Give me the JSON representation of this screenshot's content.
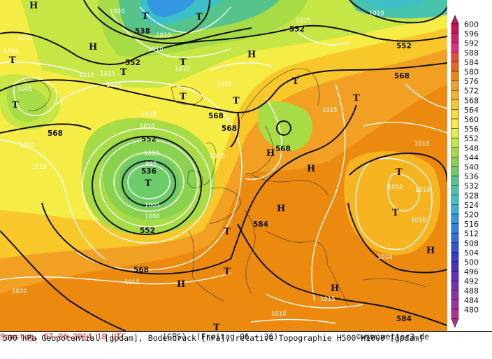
{
  "map": {
    "symbols": [
      {
        "t": "H",
        "id": "h1"
      },
      {
        "t": "T",
        "id": "t1"
      },
      {
        "t": "T",
        "id": "t2"
      },
      {
        "t": "H",
        "id": "h2"
      },
      {
        "t": "T",
        "id": "t3"
      },
      {
        "t": "T",
        "id": "t4"
      },
      {
        "t": "H",
        "id": "h3"
      },
      {
        "t": "T",
        "id": "t5"
      },
      {
        "t": "T",
        "id": "t6"
      },
      {
        "t": "T",
        "id": "t7"
      },
      {
        "t": "T",
        "id": "t8"
      },
      {
        "t": "T",
        "id": "t9"
      },
      {
        "t": "H",
        "id": "h4"
      },
      {
        "t": "H",
        "id": "h5"
      },
      {
        "t": "H",
        "id": "h6"
      },
      {
        "t": "T",
        "id": "t10"
      },
      {
        "t": "T",
        "id": "t11"
      },
      {
        "t": "T",
        "id": "t12"
      },
      {
        "t": "H",
        "id": "h7"
      },
      {
        "t": "T",
        "id": "t13"
      },
      {
        "t": "H",
        "id": "h8"
      },
      {
        "t": "H",
        "id": "h9"
      },
      {
        "t": "T",
        "id": "t14"
      },
      {
        "t": "T",
        "id": "t15"
      },
      {
        "t": "T",
        "id": "t16"
      }
    ],
    "geopotential_labels": [
      "538",
      "552",
      "552",
      "552",
      "568",
      "568",
      "568",
      "568",
      "568",
      "552",
      "536",
      "552",
      "568",
      "584",
      "584"
    ],
    "pressure_labels": [
      "1020",
      "1010",
      "1015",
      "1010",
      "1010",
      "1010",
      "1010",
      "1005",
      "1010",
      "1015",
      "1015",
      "1020",
      "1010",
      "1015",
      "1010",
      "1015",
      "1010",
      "1000",
      "995",
      "1000",
      "1005",
      "1015",
      "1020",
      "1010",
      "1015",
      "1010",
      "1010",
      "1010",
      "1010",
      "1010",
      "1015",
      "1010"
    ]
  },
  "legend": {
    "scale_values": [
      600,
      596,
      592,
      588,
      584,
      580,
      576,
      572,
      568,
      564,
      560,
      556,
      552,
      548,
      544,
      540,
      536,
      532,
      528,
      524,
      520,
      516,
      512,
      508,
      504,
      500,
      496,
      492,
      488,
      484,
      480
    ],
    "colors": [
      "#c8125a",
      "#d4206a",
      "#e0307c",
      "#e04a3a",
      "#e46a1e",
      "#ec8a10",
      "#f2a024",
      "#f6b420",
      "#f8c82a",
      "#fadc3a",
      "#f6ec46",
      "#e2ee46",
      "#c6e646",
      "#a8dc46",
      "#88d250",
      "#6ccc68",
      "#56c48a",
      "#48c4ac",
      "#3cc0c6",
      "#38b0d8",
      "#3498e0",
      "#3482e0",
      "#346cd8",
      "#3454d0",
      "#343cc8",
      "#4a30c0",
      "#6030b8",
      "#7830b0",
      "#8c30a6",
      "#a0309c",
      "#b03090"
    ]
  },
  "footer": {
    "description": "500 hPa Geopotential [gpdam], Bodendruck [hPa], relative Topographie H500-H1000 [gpdam]",
    "date": "Samstag, 07-06-2014  18 UTC",
    "model": "(GFS)",
    "run": "(Freitag 06 + 36)",
    "credit": "©www.wetter3.de"
  }
}
